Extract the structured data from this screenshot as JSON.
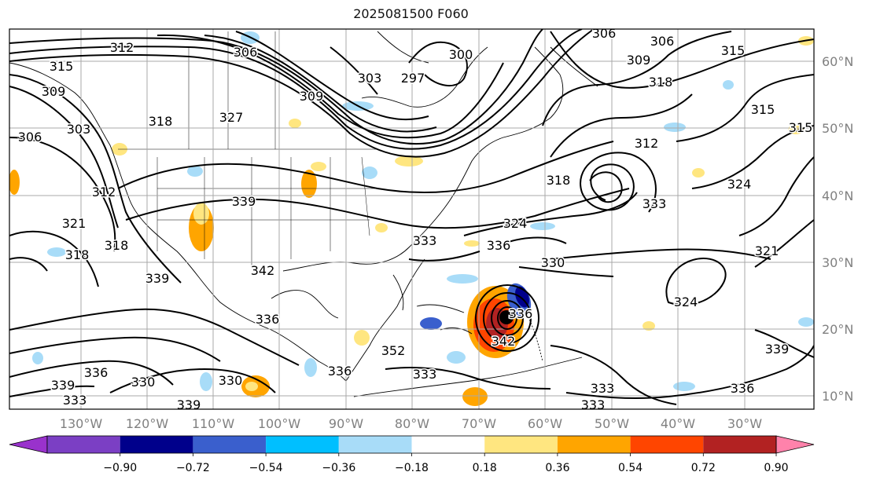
{
  "title": "2025081500 F060",
  "map": {
    "lon_labels": [
      "130°W",
      "120°W",
      "110°W",
      "100°W",
      "90°W",
      "80°W",
      "70°W",
      "60°W",
      "50°W",
      "40°W",
      "30°W"
    ],
    "lat_labels": [
      "60°N",
      "50°N",
      "40°N",
      "30°N",
      "20°N",
      "10°N"
    ],
    "lat_values": [
      60,
      50,
      40,
      30,
      20,
      10
    ],
    "contour_labels": [
      {
        "text": "312"
      },
      {
        "text": "315"
      },
      {
        "text": "309"
      },
      {
        "text": "306"
      },
      {
        "text": "303"
      },
      {
        "text": "306"
      },
      {
        "text": "303"
      },
      {
        "text": "300"
      },
      {
        "text": "297"
      },
      {
        "text": "309"
      },
      {
        "text": "309"
      },
      {
        "text": "306"
      },
      {
        "text": "315"
      },
      {
        "text": "318"
      },
      {
        "text": "315"
      },
      {
        "text": "315"
      },
      {
        "text": "312"
      },
      {
        "text": "306"
      },
      {
        "text": "318"
      },
      {
        "text": "327"
      },
      {
        "text": "312"
      },
      {
        "text": "339"
      },
      {
        "text": "321"
      },
      {
        "text": "318"
      },
      {
        "text": "318"
      },
      {
        "text": "318"
      },
      {
        "text": "324"
      },
      {
        "text": "333"
      },
      {
        "text": "324"
      },
      {
        "text": "333"
      },
      {
        "text": "336"
      },
      {
        "text": "330"
      },
      {
        "text": "342"
      },
      {
        "text": "321"
      },
      {
        "text": "324"
      },
      {
        "text": "339"
      },
      {
        "text": "336"
      },
      {
        "text": "333"
      },
      {
        "text": "336"
      },
      {
        "text": "330"
      },
      {
        "text": "330"
      },
      {
        "text": "339"
      },
      {
        "text": "336"
      },
      {
        "text": "333"
      },
      {
        "text": "339"
      },
      {
        "text": "336"
      },
      {
        "text": "333"
      },
      {
        "text": "333"
      },
      {
        "text": "336"
      },
      {
        "text": "339"
      },
      {
        "text": "342"
      },
      {
        "text": "352"
      }
    ]
  },
  "colorbar": {
    "tick_labels": [
      "−0.90",
      "−0.72",
      "−0.54",
      "−0.36",
      "−0.18",
      "0.18",
      "0.36",
      "0.54",
      "0.72",
      "0.90"
    ],
    "colors": {
      "under": "#9932cc",
      "bins": [
        "#7b3fc4",
        "#00008b",
        "#3a5fcd",
        "#00bfff",
        "#a8dcf8",
        "#ffffff",
        "#ffe680",
        "#ffa500",
        "#ff4500",
        "#b22222"
      ],
      "over": "#ff82ab"
    }
  },
  "colors": {
    "contour": "#000000",
    "grid": "#a9a9a9",
    "axis_labels": "#808080",
    "cyclone_center": "#000000"
  }
}
